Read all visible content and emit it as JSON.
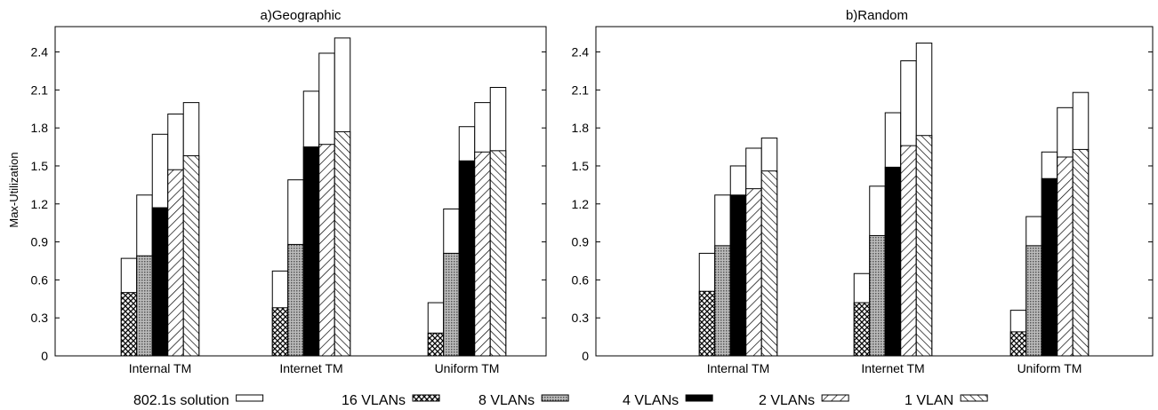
{
  "legend": {
    "entries": [
      {
        "label": "802.1s solution",
        "pattern": "white"
      },
      {
        "label": "16 VLANs",
        "pattern": "cross-hatch"
      },
      {
        "label": "8 VLANs",
        "pattern": "dots"
      },
      {
        "label": "4 VLANs",
        "pattern": "black"
      },
      {
        "label": "2 VLANs",
        "pattern": "back-diagonal"
      },
      {
        "label": "1 VLAN",
        "pattern": "forward-diagonal"
      }
    ]
  },
  "chart_data": [
    {
      "type": "bar",
      "title": "a)Geographic",
      "ylabel": "Max-Utilization",
      "xlabel": "",
      "ylim": [
        0,
        2.6
      ],
      "yticks": [
        "0",
        "0.3",
        "0.6",
        "0.9",
        "1.2",
        "1.5",
        "1.8",
        "2.1",
        "2.4"
      ],
      "categories": [
        "Internal TM",
        "Internet TM",
        "Uniform TM"
      ],
      "series": [
        {
          "name": "16 VLANs",
          "solution": [
            0.77,
            0.67,
            0.42
          ],
          "vlan": [
            0.5,
            0.38,
            0.18
          ]
        },
        {
          "name": "8 VLANs",
          "solution": [
            1.27,
            1.39,
            1.16
          ],
          "vlan": [
            0.79,
            0.88,
            0.81
          ]
        },
        {
          "name": "4 VLANs",
          "solution": [
            1.75,
            2.09,
            1.81
          ],
          "vlan": [
            1.17,
            1.65,
            1.54
          ]
        },
        {
          "name": "2 VLANs",
          "solution": [
            1.91,
            2.39,
            2.0
          ],
          "vlan": [
            1.47,
            1.67,
            1.61
          ]
        },
        {
          "name": "1 VLAN",
          "solution": [
            2.0,
            2.51,
            2.12
          ],
          "vlan": [
            1.58,
            1.77,
            1.62
          ]
        }
      ]
    },
    {
      "type": "bar",
      "title": "b)Random",
      "ylabel": "",
      "xlabel": "",
      "ylim": [
        0,
        2.6
      ],
      "yticks": [
        "0",
        "0.3",
        "0.6",
        "0.9",
        "1.2",
        "1.5",
        "1.8",
        "2.1",
        "2.4"
      ],
      "categories": [
        "Internal TM",
        "Internet TM",
        "Uniform TM"
      ],
      "series": [
        {
          "name": "16 VLANs",
          "solution": [
            0.81,
            0.65,
            0.36
          ],
          "vlan": [
            0.51,
            0.42,
            0.19
          ]
        },
        {
          "name": "8 VLANs",
          "solution": [
            1.27,
            1.34,
            1.1
          ],
          "vlan": [
            0.87,
            0.95,
            0.87
          ]
        },
        {
          "name": "4 VLANs",
          "solution": [
            1.5,
            1.92,
            1.61
          ],
          "vlan": [
            1.27,
            1.49,
            1.4
          ]
        },
        {
          "name": "2 VLANs",
          "solution": [
            1.64,
            2.33,
            1.96
          ],
          "vlan": [
            1.32,
            1.66,
            1.57
          ]
        },
        {
          "name": "1 VLAN",
          "solution": [
            1.72,
            2.47,
            2.08
          ],
          "vlan": [
            1.46,
            1.74,
            1.63
          ]
        }
      ]
    }
  ]
}
